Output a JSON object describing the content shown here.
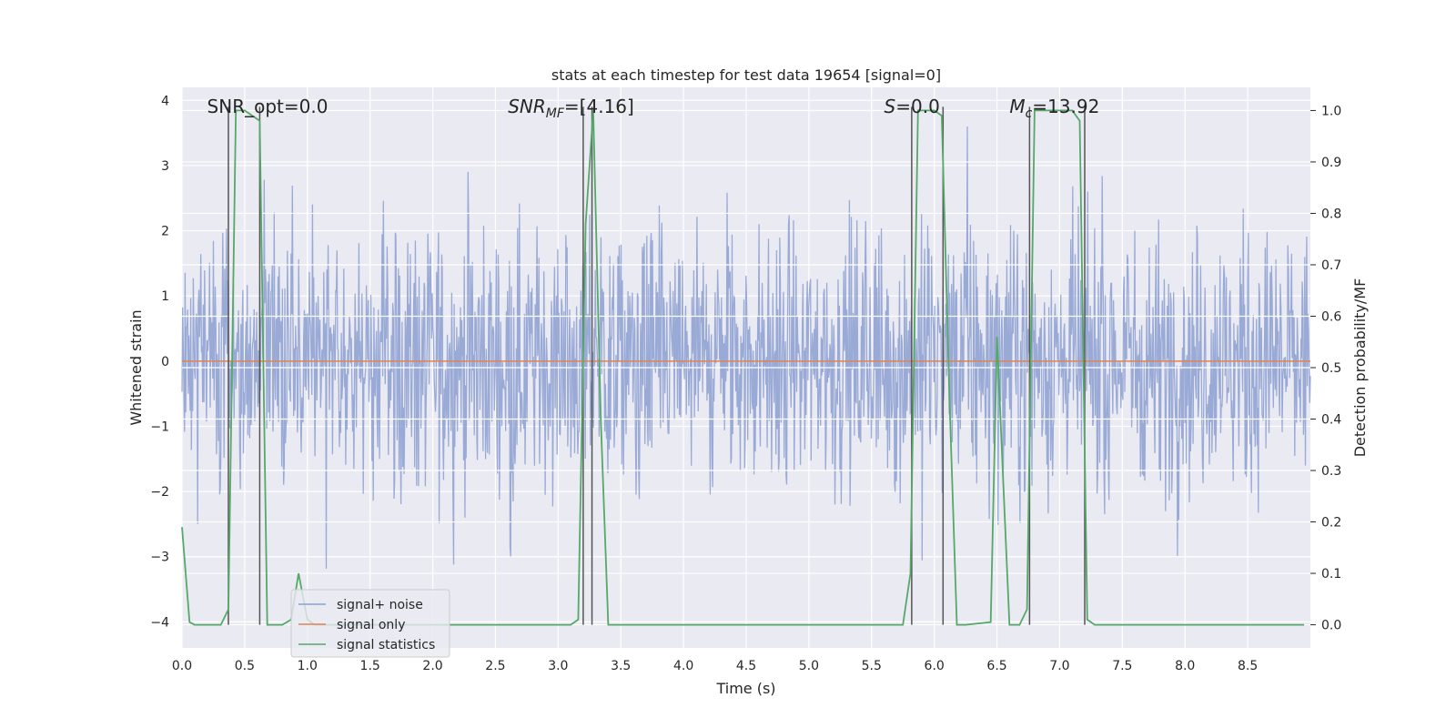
{
  "chart_data": {
    "type": "line",
    "title": "stats at each timestep for test data 19654 [signal=0]",
    "xlabel": "Time (s)",
    "ylabel": "Whitened strain",
    "y2label": "Detection probability/MF",
    "xlim": [
      0,
      9.0
    ],
    "ylim": [
      -4.4,
      4.2
    ],
    "y2lim": [
      -0.045,
      1.045
    ],
    "xticks": [
      "0.0",
      "0.5",
      "1.0",
      "1.5",
      "2.0",
      "2.5",
      "3.0",
      "3.5",
      "4.0",
      "4.5",
      "5.0",
      "5.5",
      "6.0",
      "6.5",
      "7.0",
      "7.5",
      "8.0",
      "8.5"
    ],
    "yticks": [
      "4",
      "3",
      "2",
      "1",
      "0",
      "−1",
      "−2",
      "−3",
      "−4"
    ],
    "y2ticks": [
      "1.0",
      "0.9",
      "0.8",
      "0.7",
      "0.6",
      "0.5",
      "0.4",
      "0.3",
      "0.2",
      "0.1",
      "0.0"
    ],
    "grid": true,
    "legend_position": "lower-left",
    "annotations": [
      {
        "x": 0.2,
        "text": "SNR_opt=0.0"
      },
      {
        "x": 2.6,
        "text": "SNR_MF=[4.16]"
      },
      {
        "x": 5.6,
        "text": "S=0.0"
      },
      {
        "x": 6.6,
        "text": "M_c=13.92"
      }
    ],
    "vertical_lines_x": [
      0.37,
      0.62,
      3.2,
      3.27,
      5.82,
      6.07,
      6.76,
      7.2
    ],
    "series": [
      {
        "name": "signal+ noise",
        "axis": "left",
        "color": "#8c9fd1",
        "description": "whitened noise, amplitude about ±2 with peaks near ±3.5",
        "sample_count": 1800,
        "y_range": [
          -3.6,
          3.6
        ]
      },
      {
        "name": "signal only",
        "axis": "left",
        "color": "#dd8452",
        "x": [
          0,
          9.0
        ],
        "y": [
          0,
          0
        ]
      },
      {
        "name": "signal statistics",
        "axis": "right",
        "color": "#55a868",
        "x": [
          0.0,
          0.06,
          0.1,
          0.31,
          0.37,
          0.43,
          0.5,
          0.56,
          0.62,
          0.68,
          0.8,
          0.87,
          0.93,
          1.0,
          1.06,
          3.1,
          3.16,
          3.22,
          3.28,
          3.34,
          3.4,
          5.75,
          5.81,
          5.87,
          6.0,
          6.06,
          6.12,
          6.18,
          6.25,
          6.45,
          6.5,
          6.55,
          6.6,
          6.68,
          6.74,
          6.8,
          6.87,
          7.1,
          7.16,
          7.22,
          7.28,
          7.35,
          8.95
        ],
        "y": [
          0.19,
          0.005,
          0.0,
          0.0,
          0.03,
          1.0,
          1.0,
          0.99,
          0.98,
          0.0,
          0.0,
          0.01,
          0.1,
          0.01,
          0.0,
          0.0,
          0.01,
          0.78,
          1.0,
          0.4,
          0.0,
          0.0,
          0.1,
          1.0,
          1.0,
          0.99,
          0.45,
          0.0,
          0.0,
          0.005,
          0.56,
          0.28,
          0.0,
          0.0,
          0.03,
          1.0,
          1.0,
          1.0,
          0.98,
          0.01,
          0.0,
          0.0,
          0.0
        ]
      }
    ]
  }
}
